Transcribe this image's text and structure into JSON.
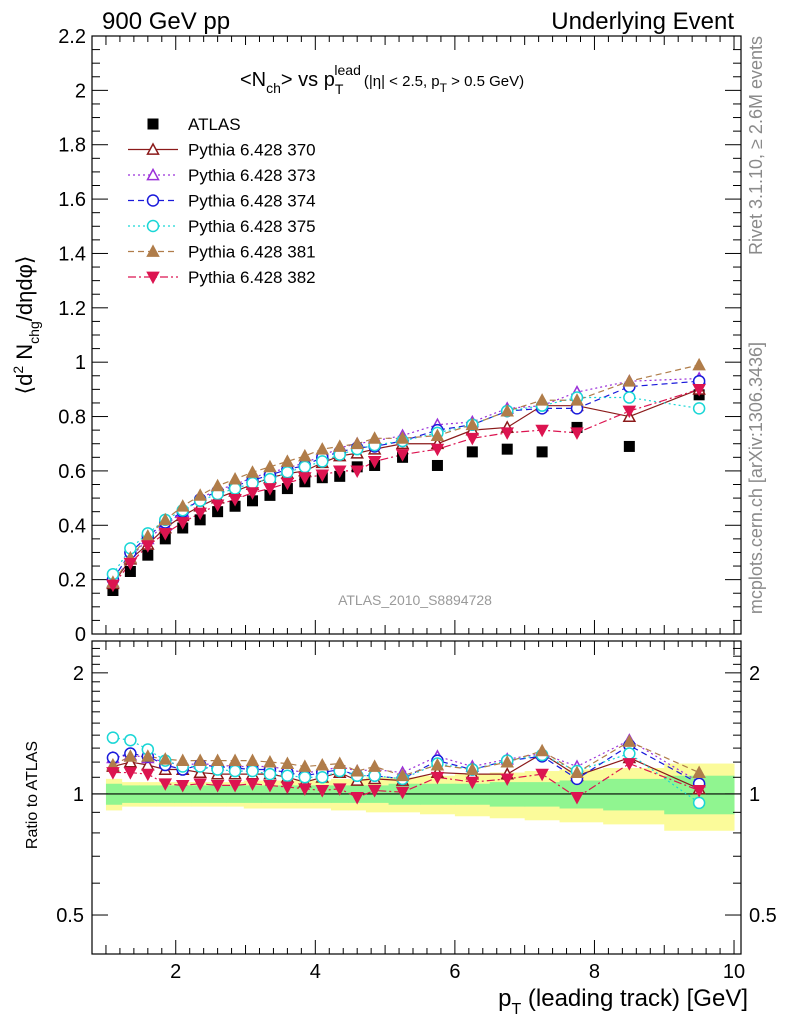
{
  "header": {
    "left": "900 GeV pp",
    "right": "Underlying Event"
  },
  "side_labels": {
    "rivet": "Rivet 3.1.10, ≥ 2.6M events",
    "mcplots": "mcplots.cern.ch [arXiv:1306.3436]"
  },
  "watermark": "ATLAS_2010_S8894728",
  "colors": {
    "atlas": "#000000",
    "p370": "#8b1a1a",
    "p373": "#9b30d9",
    "p374": "#1a1adb",
    "p375": "#1ad6d6",
    "p381": "#b07d4a",
    "p382": "#dc1450",
    "band_inner": "#90f590",
    "band_outer": "#fbfb9a"
  },
  "chart_data": [
    {
      "type": "scatter",
      "title": "<Nch> vs p_T^lead (|η| < 2.5, p_T > 0.5 GeV)",
      "ylabel": "⟨d² N_chg/dηdφ⟩",
      "ylim": [
        0,
        2.2
      ],
      "xlim": [
        0.8,
        10.1
      ],
      "yticks": [
        "0",
        "0.2",
        "0.4",
        "0.6",
        "0.8",
        "1",
        "1.2",
        "1.4",
        "1.6",
        "1.8",
        "2",
        "2.2"
      ],
      "x": [
        1.1,
        1.35,
        1.6,
        1.85,
        2.1,
        2.35,
        2.6,
        2.85,
        3.1,
        3.35,
        3.6,
        3.85,
        4.1,
        4.35,
        4.6,
        4.85,
        5.25,
        5.75,
        6.25,
        6.75,
        7.25,
        7.75,
        8.5,
        9.5
      ],
      "series": [
        {
          "name": "ATLAS",
          "key": "atlas",
          "marker": "square-filled",
          "line": "none",
          "values": [
            0.16,
            0.23,
            0.29,
            0.35,
            0.39,
            0.42,
            0.45,
            0.47,
            0.49,
            0.51,
            0.535,
            0.56,
            0.575,
            0.58,
            0.615,
            0.62,
            0.65,
            0.62,
            0.67,
            0.68,
            0.67,
            0.76,
            0.69,
            0.88
          ]
        },
        {
          "name": "Pythia 6.428 370",
          "key": "p370",
          "marker": "triangle-open",
          "line": "solid",
          "values": [
            0.185,
            0.275,
            0.33,
            0.39,
            0.435,
            0.47,
            0.5,
            0.525,
            0.55,
            0.575,
            0.59,
            0.6,
            0.63,
            0.655,
            0.665,
            0.68,
            0.7,
            0.7,
            0.75,
            0.76,
            0.84,
            0.84,
            0.8,
            0.9
          ]
        },
        {
          "name": "Pythia 6.428 373",
          "key": "p373",
          "marker": "triangle-open",
          "line": "dotted",
          "values": [
            0.19,
            0.28,
            0.35,
            0.4,
            0.45,
            0.5,
            0.53,
            0.55,
            0.575,
            0.595,
            0.61,
            0.63,
            0.655,
            0.685,
            0.7,
            0.71,
            0.73,
            0.77,
            0.78,
            0.83,
            0.84,
            0.89,
            0.93,
            0.94
          ]
        },
        {
          "name": "Pythia 6.428 374",
          "key": "p374",
          "marker": "circle-open",
          "line": "dashed",
          "values": [
            0.2,
            0.3,
            0.36,
            0.41,
            0.45,
            0.495,
            0.525,
            0.545,
            0.565,
            0.585,
            0.605,
            0.62,
            0.65,
            0.67,
            0.685,
            0.69,
            0.71,
            0.75,
            0.77,
            0.82,
            0.83,
            0.83,
            0.91,
            0.93
          ]
        },
        {
          "name": "Pythia 6.428 375",
          "key": "p375",
          "marker": "circle-open",
          "line": "dotted",
          "values": [
            0.22,
            0.315,
            0.37,
            0.42,
            0.455,
            0.49,
            0.515,
            0.535,
            0.555,
            0.57,
            0.595,
            0.615,
            0.635,
            0.66,
            0.68,
            0.695,
            0.71,
            0.74,
            0.77,
            0.82,
            0.84,
            0.87,
            0.87,
            0.83
          ]
        },
        {
          "name": "Pythia 6.428 381",
          "key": "p381",
          "marker": "triangle-filled",
          "line": "dashed",
          "values": [
            0.19,
            0.28,
            0.36,
            0.42,
            0.47,
            0.51,
            0.545,
            0.57,
            0.595,
            0.615,
            0.635,
            0.655,
            0.68,
            0.69,
            0.7,
            0.72,
            0.72,
            0.73,
            0.77,
            0.82,
            0.86,
            0.86,
            0.93,
            0.99
          ]
        },
        {
          "name": "Pythia 6.428 382",
          "key": "p382",
          "marker": "triangle-down-filled",
          "line": "dashdot",
          "values": [
            0.18,
            0.26,
            0.325,
            0.37,
            0.41,
            0.445,
            0.475,
            0.495,
            0.52,
            0.535,
            0.555,
            0.575,
            0.585,
            0.6,
            0.6,
            0.635,
            0.66,
            0.68,
            0.72,
            0.74,
            0.75,
            0.74,
            0.82,
            0.9
          ]
        }
      ]
    },
    {
      "type": "scatter",
      "title": "",
      "ylabel": "Ratio to ATLAS",
      "xlabel": "p_T (leading track) [GeV]",
      "ylog": true,
      "ylim": [
        0.4,
        2.4
      ],
      "xlim": [
        0.8,
        10.1
      ],
      "yticks": [
        "0.5",
        "1",
        "2"
      ],
      "xticks": [
        "2",
        "4",
        "6",
        "8",
        "10"
      ],
      "band_inner_halfwidth": [
        0.06,
        0.05,
        0.05,
        0.05,
        0.05,
        0.05,
        0.05,
        0.05,
        0.05,
        0.05,
        0.05,
        0.05,
        0.05,
        0.05,
        0.05,
        0.05,
        0.06,
        0.06,
        0.06,
        0.07,
        0.07,
        0.08,
        0.09,
        0.11
      ],
      "band_outer_halfwidth": [
        0.09,
        0.07,
        0.07,
        0.07,
        0.07,
        0.07,
        0.07,
        0.07,
        0.08,
        0.08,
        0.08,
        0.08,
        0.08,
        0.09,
        0.09,
        0.1,
        0.1,
        0.11,
        0.12,
        0.13,
        0.14,
        0.15,
        0.16,
        0.19
      ],
      "x": [
        1.1,
        1.35,
        1.6,
        1.85,
        2.1,
        2.35,
        2.6,
        2.85,
        3.1,
        3.35,
        3.6,
        3.85,
        4.1,
        4.35,
        4.6,
        4.85,
        5.25,
        5.75,
        6.25,
        6.75,
        7.25,
        7.75,
        8.5,
        9.5
      ],
      "series": [
        {
          "name": "Pythia 6.428 370",
          "key": "p370",
          "marker": "triangle-open",
          "line": "solid",
          "values": [
            1.17,
            1.2,
            1.18,
            1.15,
            1.15,
            1.13,
            1.12,
            1.12,
            1.12,
            1.12,
            1.1,
            1.07,
            1.1,
            1.13,
            1.08,
            1.09,
            1.08,
            1.13,
            1.12,
            1.12,
            1.26,
            1.11,
            1.23,
            1.03
          ]
        },
        {
          "name": "Pythia 6.428 373",
          "key": "p373",
          "marker": "triangle-open",
          "line": "dotted",
          "values": [
            1.23,
            1.25,
            1.23,
            1.2,
            1.18,
            1.19,
            1.18,
            1.17,
            1.17,
            1.17,
            1.15,
            1.13,
            1.14,
            1.17,
            1.14,
            1.15,
            1.13,
            1.24,
            1.17,
            1.22,
            1.26,
            1.17,
            1.36,
            1.07
          ]
        },
        {
          "name": "Pythia 6.428 374",
          "key": "p374",
          "marker": "circle-open",
          "line": "dashed",
          "values": [
            1.23,
            1.26,
            1.24,
            1.18,
            1.15,
            1.18,
            1.17,
            1.16,
            1.15,
            1.15,
            1.13,
            1.11,
            1.13,
            1.15,
            1.11,
            1.11,
            1.09,
            1.21,
            1.15,
            1.21,
            1.24,
            1.09,
            1.32,
            1.06
          ]
        },
        {
          "name": "Pythia 6.428 375",
          "key": "p375",
          "marker": "circle-open",
          "line": "dotted",
          "values": [
            1.38,
            1.36,
            1.29,
            1.21,
            1.17,
            1.17,
            1.15,
            1.14,
            1.14,
            1.12,
            1.11,
            1.1,
            1.1,
            1.14,
            1.11,
            1.11,
            1.09,
            1.19,
            1.15,
            1.21,
            1.25,
            1.14,
            1.26,
            0.95
          ]
        },
        {
          "name": "Pythia 6.428 381",
          "key": "p381",
          "marker": "triangle-filled",
          "line": "dashed",
          "values": [
            1.18,
            1.24,
            1.24,
            1.22,
            1.21,
            1.21,
            1.21,
            1.21,
            1.21,
            1.2,
            1.19,
            1.17,
            1.18,
            1.19,
            1.14,
            1.17,
            1.11,
            1.18,
            1.15,
            1.2,
            1.28,
            1.13,
            1.35,
            1.13
          ]
        },
        {
          "name": "Pythia 6.428 382",
          "key": "p382",
          "marker": "triangle-down-filled",
          "line": "dashdot",
          "values": [
            1.13,
            1.13,
            1.12,
            1.06,
            1.05,
            1.06,
            1.05,
            1.05,
            1.06,
            1.05,
            1.04,
            1.03,
            1.02,
            1.03,
            0.98,
            1.02,
            1.01,
            1.1,
            1.07,
            1.09,
            1.12,
            0.98,
            1.19,
            1.02
          ]
        }
      ]
    }
  ]
}
